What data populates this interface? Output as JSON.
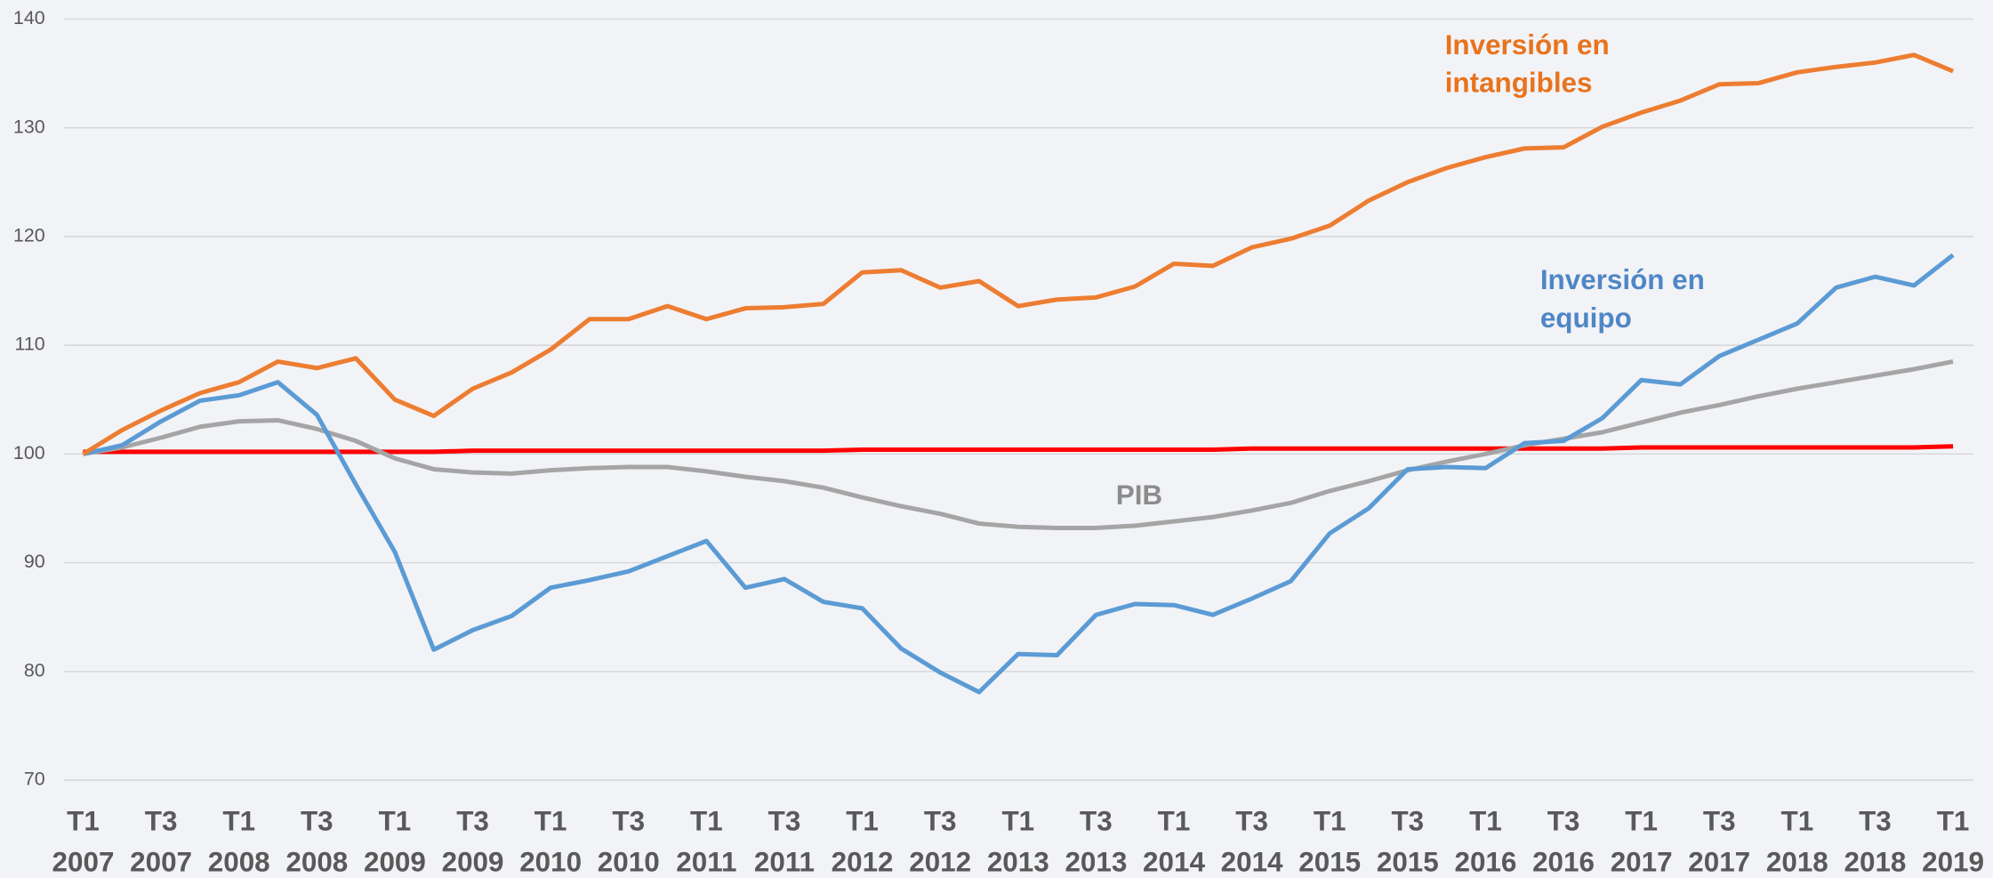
{
  "chart_data": {
    "type": "line",
    "categories": [
      "T1 2007",
      null,
      "T3 2007",
      null,
      "T1 2008",
      null,
      "T3 2008",
      null,
      "T1 2009",
      null,
      "T3 2009",
      null,
      "T1 2010",
      null,
      "T3 2010",
      null,
      "T1 2011",
      null,
      "T3 2011",
      null,
      "T1 2012",
      null,
      "T3 2012",
      null,
      "T1 2013",
      null,
      "T3 2013",
      null,
      "T1 2014",
      null,
      "T3 2014",
      null,
      "T1 2015",
      null,
      "T3 2015",
      null,
      "T1 2016",
      null,
      "T3 2016",
      null,
      "T1 2017",
      null,
      "T3 2017",
      null,
      "T1 2018",
      null,
      "T3 2018",
      null,
      "T1 2019"
    ],
    "series": [
      {
        "name": "Inversión en intangibles",
        "color": "#ED7D31",
        "values": [
          100,
          102.2,
          104,
          105.6,
          106.6,
          108.5,
          107.9,
          108.8,
          105,
          103.5,
          106,
          107.5,
          109.6,
          112.4,
          112.4,
          113.6,
          112.4,
          113.4,
          113.5,
          113.8,
          116.7,
          116.9,
          115.3,
          115.9,
          113.6,
          114.2,
          114.4,
          115.4,
          117.5,
          117.3,
          119,
          119.8,
          121,
          123.3,
          125,
          126.3,
          127.3,
          128.1,
          128.2,
          130.1,
          131.4,
          132.5,
          134,
          134.1,
          135.1,
          135.6,
          136,
          136.7,
          135.2
        ]
      },
      {
        "name": "Inversión en equipo",
        "color": "#5B9BD5",
        "values": [
          100,
          100.8,
          103,
          104.9,
          105.4,
          106.6,
          103.6,
          97.2,
          91,
          82,
          83.8,
          85.1,
          87.7,
          88.4,
          89.2,
          90.6,
          92,
          87.7,
          88.5,
          86.4,
          85.8,
          82.1,
          79.9,
          78.1,
          81.6,
          81.5,
          85.2,
          86.2,
          86.1,
          85.2,
          86.7,
          88.3,
          92.7,
          95,
          98.6,
          98.8,
          98.7,
          101,
          101.2,
          103.3,
          106.8,
          106.4,
          109,
          110.5,
          112,
          115.3,
          116.3,
          115.5,
          118.3
        ]
      },
      {
        "name": "PIB",
        "color": "#A5A5A5",
        "values": [
          100,
          100.6,
          101.5,
          102.5,
          103,
          103.1,
          102.3,
          101.2,
          99.6,
          98.6,
          98.3,
          98.2,
          98.5,
          98.7,
          98.8,
          98.8,
          98.4,
          97.9,
          97.5,
          96.9,
          96,
          95.2,
          94.5,
          93.6,
          93.3,
          93.2,
          93.2,
          93.4,
          93.8,
          94.2,
          94.8,
          95.5,
          96.6,
          97.5,
          98.5,
          99.3,
          100,
          100.8,
          101.4,
          102,
          102.9,
          103.8,
          104.5,
          105.3,
          106,
          106.6,
          107.2,
          107.8,
          108.5
        ]
      },
      {
        "color": "#FF0000",
        "values": [
          100.2,
          100.2,
          100.2,
          100.2,
          100.2,
          100.2,
          100.2,
          100.2,
          100.2,
          100.2,
          100.3,
          100.3,
          100.3,
          100.3,
          100.3,
          100.3,
          100.3,
          100.3,
          100.3,
          100.3,
          100.4,
          100.4,
          100.4,
          100.4,
          100.4,
          100.4,
          100.4,
          100.4,
          100.4,
          100.4,
          100.5,
          100.5,
          100.5,
          100.5,
          100.5,
          100.5,
          100.5,
          100.5,
          100.5,
          100.5,
          100.6,
          100.6,
          100.6,
          100.6,
          100.6,
          100.6,
          100.6,
          100.6,
          100.7
        ]
      }
    ],
    "ylim": [
      70,
      140
    ],
    "yticks": [
      70,
      80,
      90,
      100,
      110,
      120,
      130,
      140
    ],
    "grid": true
  }
}
